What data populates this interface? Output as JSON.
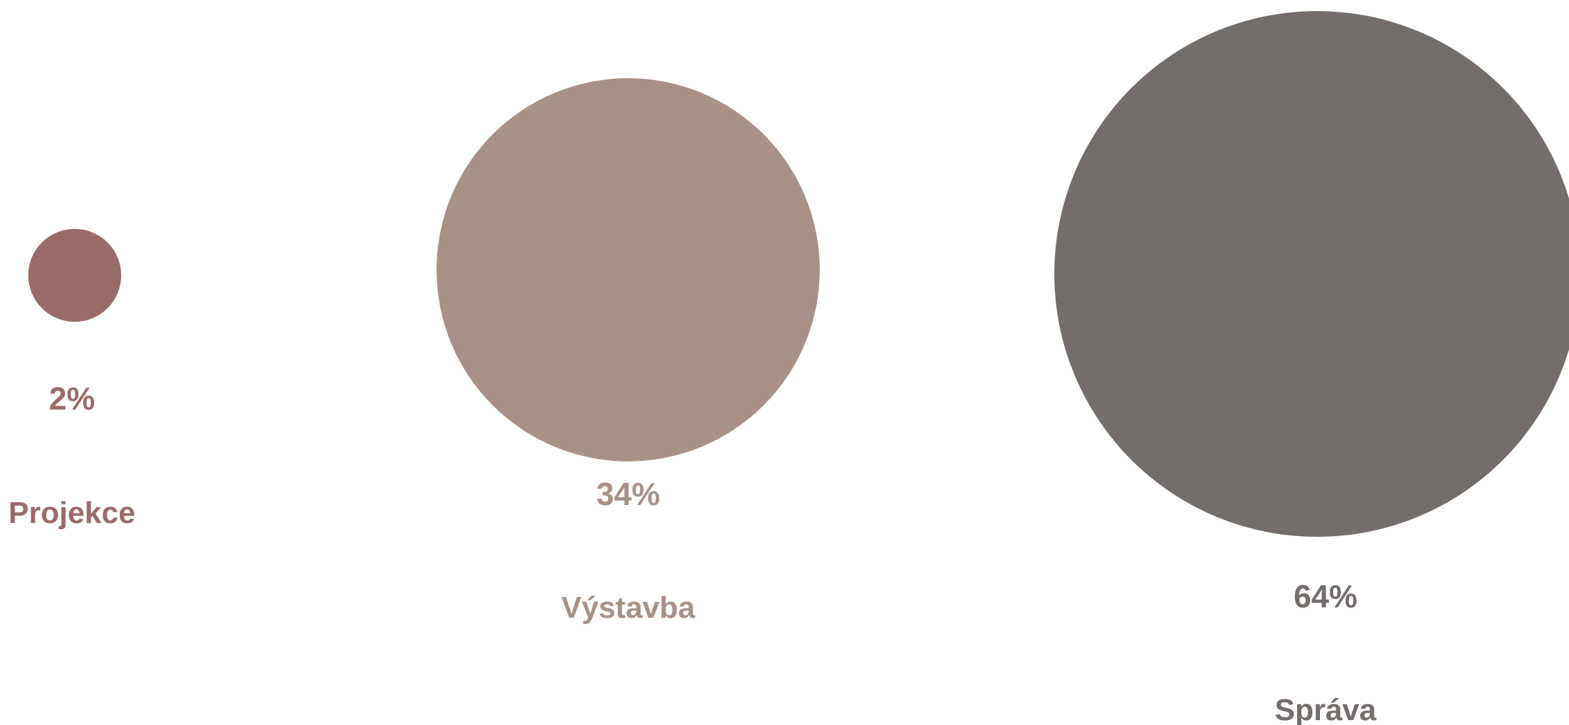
{
  "chart_data": {
    "type": "bubble",
    "title": "",
    "categories": [
      "Projekce",
      "Výstavba",
      "Správa"
    ],
    "values": [
      2,
      34,
      64
    ],
    "value_labels": [
      "2%",
      "34%",
      "64%"
    ],
    "colors": [
      "#9a6b6b",
      "#a89188",
      "#736e6c"
    ],
    "grid": false,
    "legend": "none"
  }
}
